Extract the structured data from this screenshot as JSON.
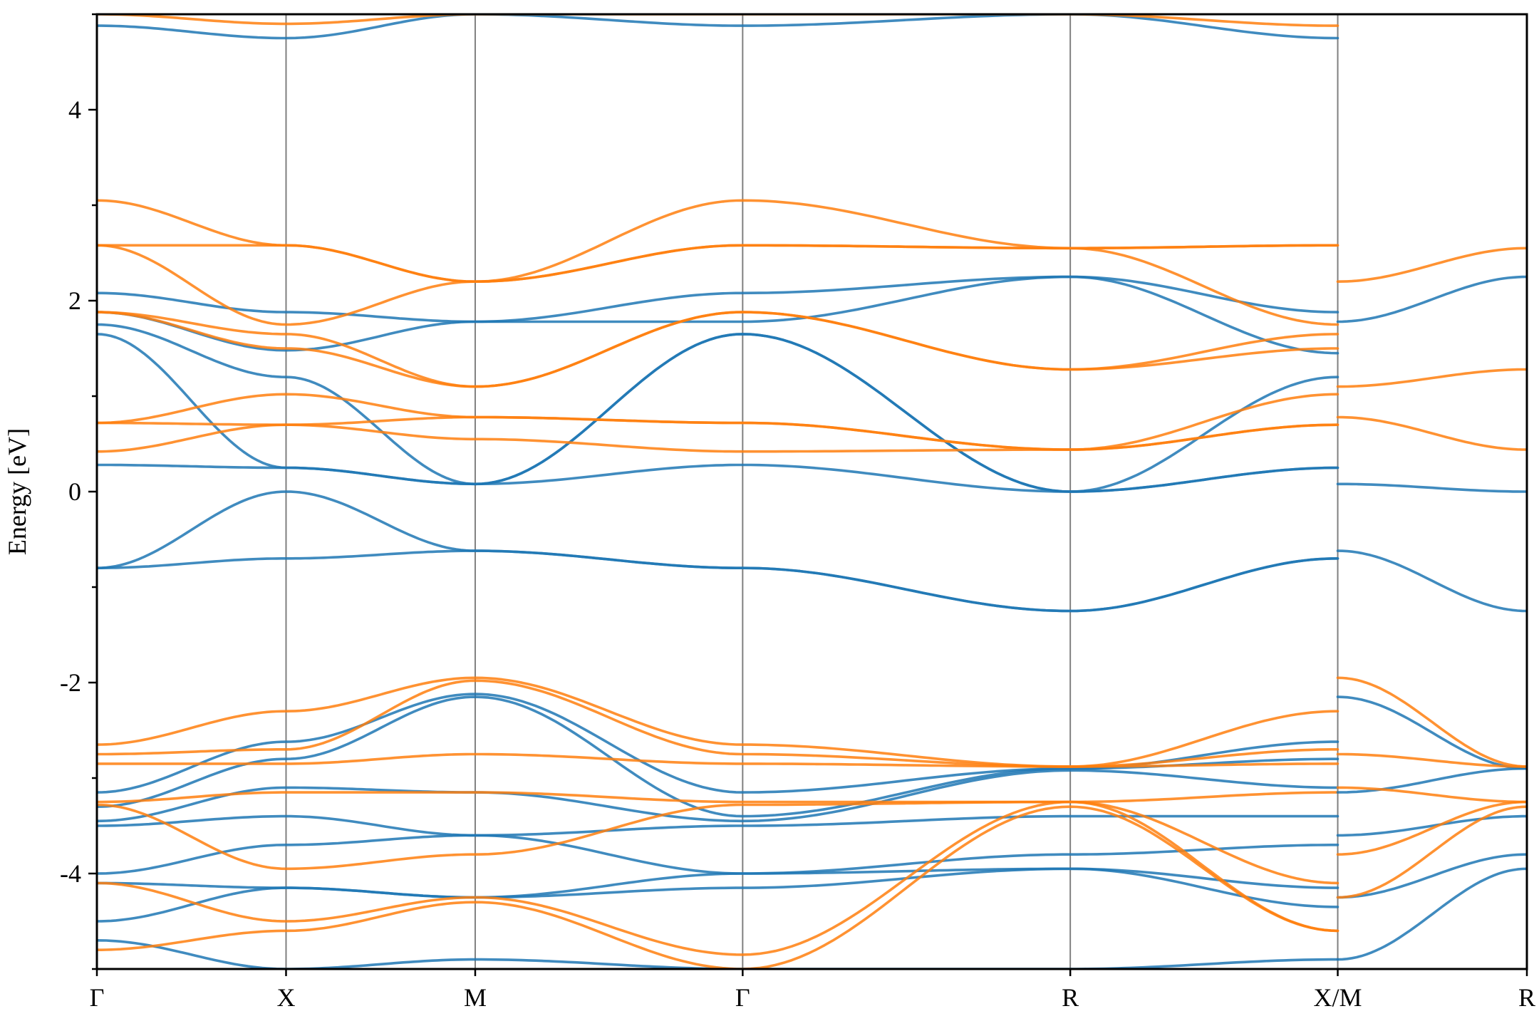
{
  "chart_data": {
    "type": "line",
    "title": "",
    "ylabel": "Energy [eV]",
    "xlabel": "",
    "ylim": [
      -5,
      5
    ],
    "yticks": [
      -4,
      -2,
      0,
      2,
      4
    ],
    "ytick_labels": [
      "-4",
      "-2",
      "0",
      "2",
      "4"
    ],
    "yminor_ticks": [
      -5,
      -3,
      -1,
      1,
      3,
      5
    ],
    "kpath_ticks": [
      {
        "label": "Γ",
        "k": 0.0
      },
      {
        "label": "X",
        "k": 1.0
      },
      {
        "label": "M",
        "k": 2.0
      },
      {
        "label": "Γ",
        "k": 3.414
      },
      {
        "label": "R",
        "k": 5.146
      },
      {
        "label": "X/M",
        "k": 6.56
      },
      {
        "label": "R",
        "k": 7.56
      }
    ],
    "segments": [
      [
        0.0,
        6.56
      ],
      [
        6.56,
        7.56
      ]
    ],
    "colors": {
      "spin_up": "#1f77b4",
      "spin_down": "#ff7f0e"
    },
    "series": [
      {
        "spin": "up",
        "k": [
          0,
          1,
          2,
          3.414,
          5.146,
          6.56
        ],
        "energy": [
          4.88,
          4.75,
          5.0,
          4.88,
          5.0,
          4.75
        ]
      },
      {
        "spin": "up",
        "k": [
          0,
          1,
          2,
          3.414,
          5.146,
          6.56
        ],
        "energy": [
          2.08,
          1.88,
          1.78,
          2.08,
          2.25,
          1.88
        ]
      },
      {
        "spin": "up",
        "k": [
          0,
          1,
          2,
          3.414,
          5.146,
          6.56
        ],
        "energy": [
          1.88,
          1.48,
          1.78,
          1.78,
          2.25,
          1.45
        ]
      },
      {
        "spin": "up",
        "k": [
          0,
          1,
          2,
          3.414,
          5.146,
          6.56
        ],
        "energy": [
          1.75,
          1.2,
          0.08,
          1.65,
          0.0,
          1.2
        ]
      },
      {
        "spin": "up",
        "k": [
          0,
          1,
          2,
          3.414,
          5.146,
          6.56
        ],
        "energy": [
          1.65,
          0.25,
          0.08,
          1.65,
          0.0,
          0.25
        ]
      },
      {
        "spin": "up",
        "k": [
          0,
          1,
          2,
          3.414,
          5.146,
          6.56
        ],
        "energy": [
          0.28,
          0.25,
          0.08,
          0.28,
          0.0,
          0.25
        ]
      },
      {
        "spin": "up",
        "k": [
          0,
          1,
          2,
          3.414,
          5.146,
          6.56
        ],
        "energy": [
          -0.8,
          0.0,
          -0.62,
          -0.8,
          -1.25,
          -0.7
        ]
      },
      {
        "spin": "up",
        "k": [
          0,
          1,
          2,
          3.414,
          5.146,
          6.56
        ],
        "energy": [
          -0.8,
          -0.7,
          -0.62,
          -0.8,
          -1.25,
          -0.7
        ]
      },
      {
        "spin": "up",
        "k": [
          0,
          1,
          2,
          3.414,
          5.146,
          6.56
        ],
        "energy": [
          -3.15,
          -2.62,
          -2.12,
          -3.15,
          -2.9,
          -2.62
        ]
      },
      {
        "spin": "up",
        "k": [
          0,
          1,
          2,
          3.414,
          5.146,
          6.56
        ],
        "energy": [
          -3.3,
          -2.8,
          -2.15,
          -3.4,
          -2.9,
          -2.8
        ]
      },
      {
        "spin": "up",
        "k": [
          0,
          1,
          2,
          3.414,
          5.146,
          6.56
        ],
        "energy": [
          -3.45,
          -3.1,
          -3.15,
          -3.45,
          -2.92,
          -3.1
        ]
      },
      {
        "spin": "up",
        "k": [
          0,
          1,
          2,
          3.414,
          5.146,
          6.56
        ],
        "energy": [
          -3.5,
          -3.4,
          -3.6,
          -3.5,
          -3.4,
          -3.4
        ]
      },
      {
        "spin": "up",
        "k": [
          0,
          1,
          2,
          3.414,
          5.146,
          6.56
        ],
        "energy": [
          -4.0,
          -3.7,
          -3.6,
          -4.0,
          -3.8,
          -3.7
        ]
      },
      {
        "spin": "up",
        "k": [
          0,
          1,
          2,
          3.414,
          5.146,
          6.56
        ],
        "energy": [
          -4.1,
          -4.15,
          -4.25,
          -4.0,
          -3.95,
          -4.15
        ]
      },
      {
        "spin": "up",
        "k": [
          0,
          1,
          2,
          3.414,
          5.146,
          6.56
        ],
        "energy": [
          -4.5,
          -4.15,
          -4.25,
          -4.15,
          -3.95,
          -4.35
        ]
      },
      {
        "spin": "up",
        "k": [
          0,
          1,
          2,
          3.414,
          5.146,
          6.56
        ],
        "energy": [
          -4.7,
          -5.0,
          -4.9,
          -5.0,
          -5.0,
          -4.9
        ]
      },
      {
        "spin": "down",
        "k": [
          0,
          1,
          2,
          3.414,
          5.146,
          6.56
        ],
        "energy": [
          5.0,
          4.9,
          5.0,
          5.0,
          5.0,
          4.88
        ]
      },
      {
        "spin": "down",
        "k": [
          0,
          1,
          2,
          3.414,
          5.146,
          6.56
        ],
        "energy": [
          3.05,
          2.58,
          2.2,
          3.05,
          2.55,
          2.58
        ]
      },
      {
        "spin": "down",
        "k": [
          0,
          1,
          2,
          3.414,
          5.146,
          6.56
        ],
        "energy": [
          2.58,
          2.58,
          2.2,
          2.58,
          2.55,
          2.58
        ]
      },
      {
        "spin": "down",
        "k": [
          0,
          1,
          2,
          3.414,
          5.146,
          6.56
        ],
        "energy": [
          2.58,
          1.75,
          2.2,
          2.58,
          2.55,
          1.75
        ]
      },
      {
        "spin": "down",
        "k": [
          0,
          1,
          2,
          3.414,
          5.146,
          6.56
        ],
        "energy": [
          1.88,
          1.65,
          1.1,
          1.88,
          1.28,
          1.65
        ]
      },
      {
        "spin": "down",
        "k": [
          0,
          1,
          2,
          3.414,
          5.146,
          6.56
        ],
        "energy": [
          1.88,
          1.5,
          1.1,
          1.88,
          1.28,
          1.5
        ]
      },
      {
        "spin": "down",
        "k": [
          0,
          1,
          2,
          3.414,
          5.146,
          6.56
        ],
        "energy": [
          0.72,
          1.02,
          0.78,
          0.72,
          0.44,
          1.02
        ]
      },
      {
        "spin": "down",
        "k": [
          0,
          1,
          2,
          3.414,
          5.146,
          6.56
        ],
        "energy": [
          0.72,
          0.7,
          0.78,
          0.72,
          0.44,
          0.7
        ]
      },
      {
        "spin": "down",
        "k": [
          0,
          1,
          2,
          3.414,
          5.146,
          6.56
        ],
        "energy": [
          0.42,
          0.7,
          0.55,
          0.42,
          0.44,
          0.7
        ]
      },
      {
        "spin": "down",
        "k": [
          0,
          1,
          2,
          3.414,
          5.146,
          6.56
        ],
        "energy": [
          -2.65,
          -2.3,
          -1.95,
          -2.65,
          -2.88,
          -2.3
        ]
      },
      {
        "spin": "down",
        "k": [
          0,
          1,
          2,
          3.414,
          5.146,
          6.56
        ],
        "energy": [
          -2.75,
          -2.7,
          -1.98,
          -2.75,
          -2.88,
          -2.7
        ]
      },
      {
        "spin": "down",
        "k": [
          0,
          1,
          2,
          3.414,
          5.146,
          6.56
        ],
        "energy": [
          -2.85,
          -2.85,
          -2.75,
          -2.85,
          -2.88,
          -2.85
        ]
      },
      {
        "spin": "down",
        "k": [
          0,
          1,
          2,
          3.414,
          5.146,
          6.56
        ],
        "energy": [
          -3.25,
          -3.15,
          -3.15,
          -3.25,
          -3.25,
          -3.15
        ]
      },
      {
        "spin": "down",
        "k": [
          0,
          1,
          2,
          3.414,
          5.146,
          6.56
        ],
        "energy": [
          -3.28,
          -3.95,
          -3.8,
          -3.28,
          -3.25,
          -4.1
        ]
      },
      {
        "spin": "down",
        "k": [
          0,
          1,
          2,
          3.414,
          5.146,
          6.56
        ],
        "energy": [
          -4.1,
          -4.5,
          -4.25,
          -4.85,
          -3.25,
          -4.6
        ]
      },
      {
        "spin": "down",
        "k": [
          0,
          1,
          2,
          3.414,
          5.146,
          6.56
        ],
        "energy": [
          -4.8,
          -4.6,
          -4.3,
          -5.0,
          -3.3,
          -4.6
        ]
      },
      {
        "spin": "up",
        "k": [
          6.56,
          7.56
        ],
        "energy": [
          1.78,
          2.25
        ]
      },
      {
        "spin": "up",
        "k": [
          6.56,
          7.56
        ],
        "energy": [
          0.08,
          0.0
        ]
      },
      {
        "spin": "up",
        "k": [
          6.56,
          7.56
        ],
        "energy": [
          -0.62,
          -1.25
        ]
      },
      {
        "spin": "up",
        "k": [
          6.56,
          7.56
        ],
        "energy": [
          -2.15,
          -2.9
        ]
      },
      {
        "spin": "up",
        "k": [
          6.56,
          7.56
        ],
        "energy": [
          -3.15,
          -2.9
        ]
      },
      {
        "spin": "up",
        "k": [
          6.56,
          7.56
        ],
        "energy": [
          -3.6,
          -3.4
        ]
      },
      {
        "spin": "up",
        "k": [
          6.56,
          7.56
        ],
        "energy": [
          -4.25,
          -3.8
        ]
      },
      {
        "spin": "up",
        "k": [
          6.56,
          7.56
        ],
        "energy": [
          -4.9,
          -3.95
        ]
      },
      {
        "spin": "down",
        "k": [
          6.56,
          7.56
        ],
        "energy": [
          2.2,
          2.55
        ]
      },
      {
        "spin": "down",
        "k": [
          6.56,
          7.56
        ],
        "energy": [
          1.1,
          1.28
        ]
      },
      {
        "spin": "down",
        "k": [
          6.56,
          7.56
        ],
        "energy": [
          0.78,
          0.44
        ]
      },
      {
        "spin": "down",
        "k": [
          6.56,
          7.56
        ],
        "energy": [
          -1.95,
          -2.88
        ]
      },
      {
        "spin": "down",
        "k": [
          6.56,
          7.56
        ],
        "energy": [
          -2.75,
          -2.88
        ]
      },
      {
        "spin": "down",
        "k": [
          6.56,
          7.56
        ],
        "energy": [
          -3.1,
          -3.25
        ]
      },
      {
        "spin": "down",
        "k": [
          6.56,
          7.56
        ],
        "energy": [
          -3.8,
          -3.25
        ]
      },
      {
        "spin": "down",
        "k": [
          6.56,
          7.56
        ],
        "energy": [
          -4.25,
          -3.3
        ]
      }
    ]
  }
}
